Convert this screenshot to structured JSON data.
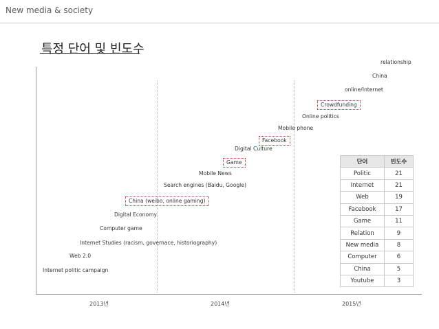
{
  "header": {
    "section": "New media & society"
  },
  "slide": {
    "title": "특정 단어 및 빈도수"
  },
  "timeline": {
    "years": [
      "2013년",
      "2014년",
      "2015년"
    ],
    "terms": [
      {
        "label": "relationship",
        "highlighted": false
      },
      {
        "label": "China",
        "highlighted": false
      },
      {
        "label": "online/Internet",
        "highlighted": false
      },
      {
        "label": "Crowdfunding",
        "highlighted": true
      },
      {
        "label": "Online politics",
        "highlighted": false
      },
      {
        "label": "Mobile phone",
        "highlighted": false
      },
      {
        "label": "Facebook",
        "highlighted": true
      },
      {
        "label": "Digital Culture",
        "highlighted": false
      },
      {
        "label": "Game",
        "highlighted": true
      },
      {
        "label": "Mobile News",
        "highlighted": false
      },
      {
        "label": "Search engines (Baidu, Google)",
        "highlighted": false
      },
      {
        "label": "China (weibo, online gaming)",
        "highlighted": true
      },
      {
        "label": "Digital Economy",
        "highlighted": false
      },
      {
        "label": "Computer game",
        "highlighted": false
      },
      {
        "label": "Internet Studies (racism, governace, historiography)",
        "highlighted": false
      },
      {
        "label": "Web 2.0",
        "highlighted": false
      },
      {
        "label": "Internet politic campaign",
        "highlighted": false
      }
    ],
    "highlight_color": "#d0312d"
  },
  "frequency_table": {
    "headers": [
      "단어",
      "빈도수"
    ],
    "rows": [
      [
        "Politic",
        "21"
      ],
      [
        "Internet",
        "21"
      ],
      [
        "Web",
        "19"
      ],
      [
        "Facebook",
        "17"
      ],
      [
        "Game",
        "11"
      ],
      [
        "Relation",
        "9"
      ],
      [
        "New media",
        "8"
      ],
      [
        "Computer",
        "6"
      ],
      [
        "China",
        "5"
      ],
      [
        "Youtube",
        "3"
      ]
    ]
  }
}
